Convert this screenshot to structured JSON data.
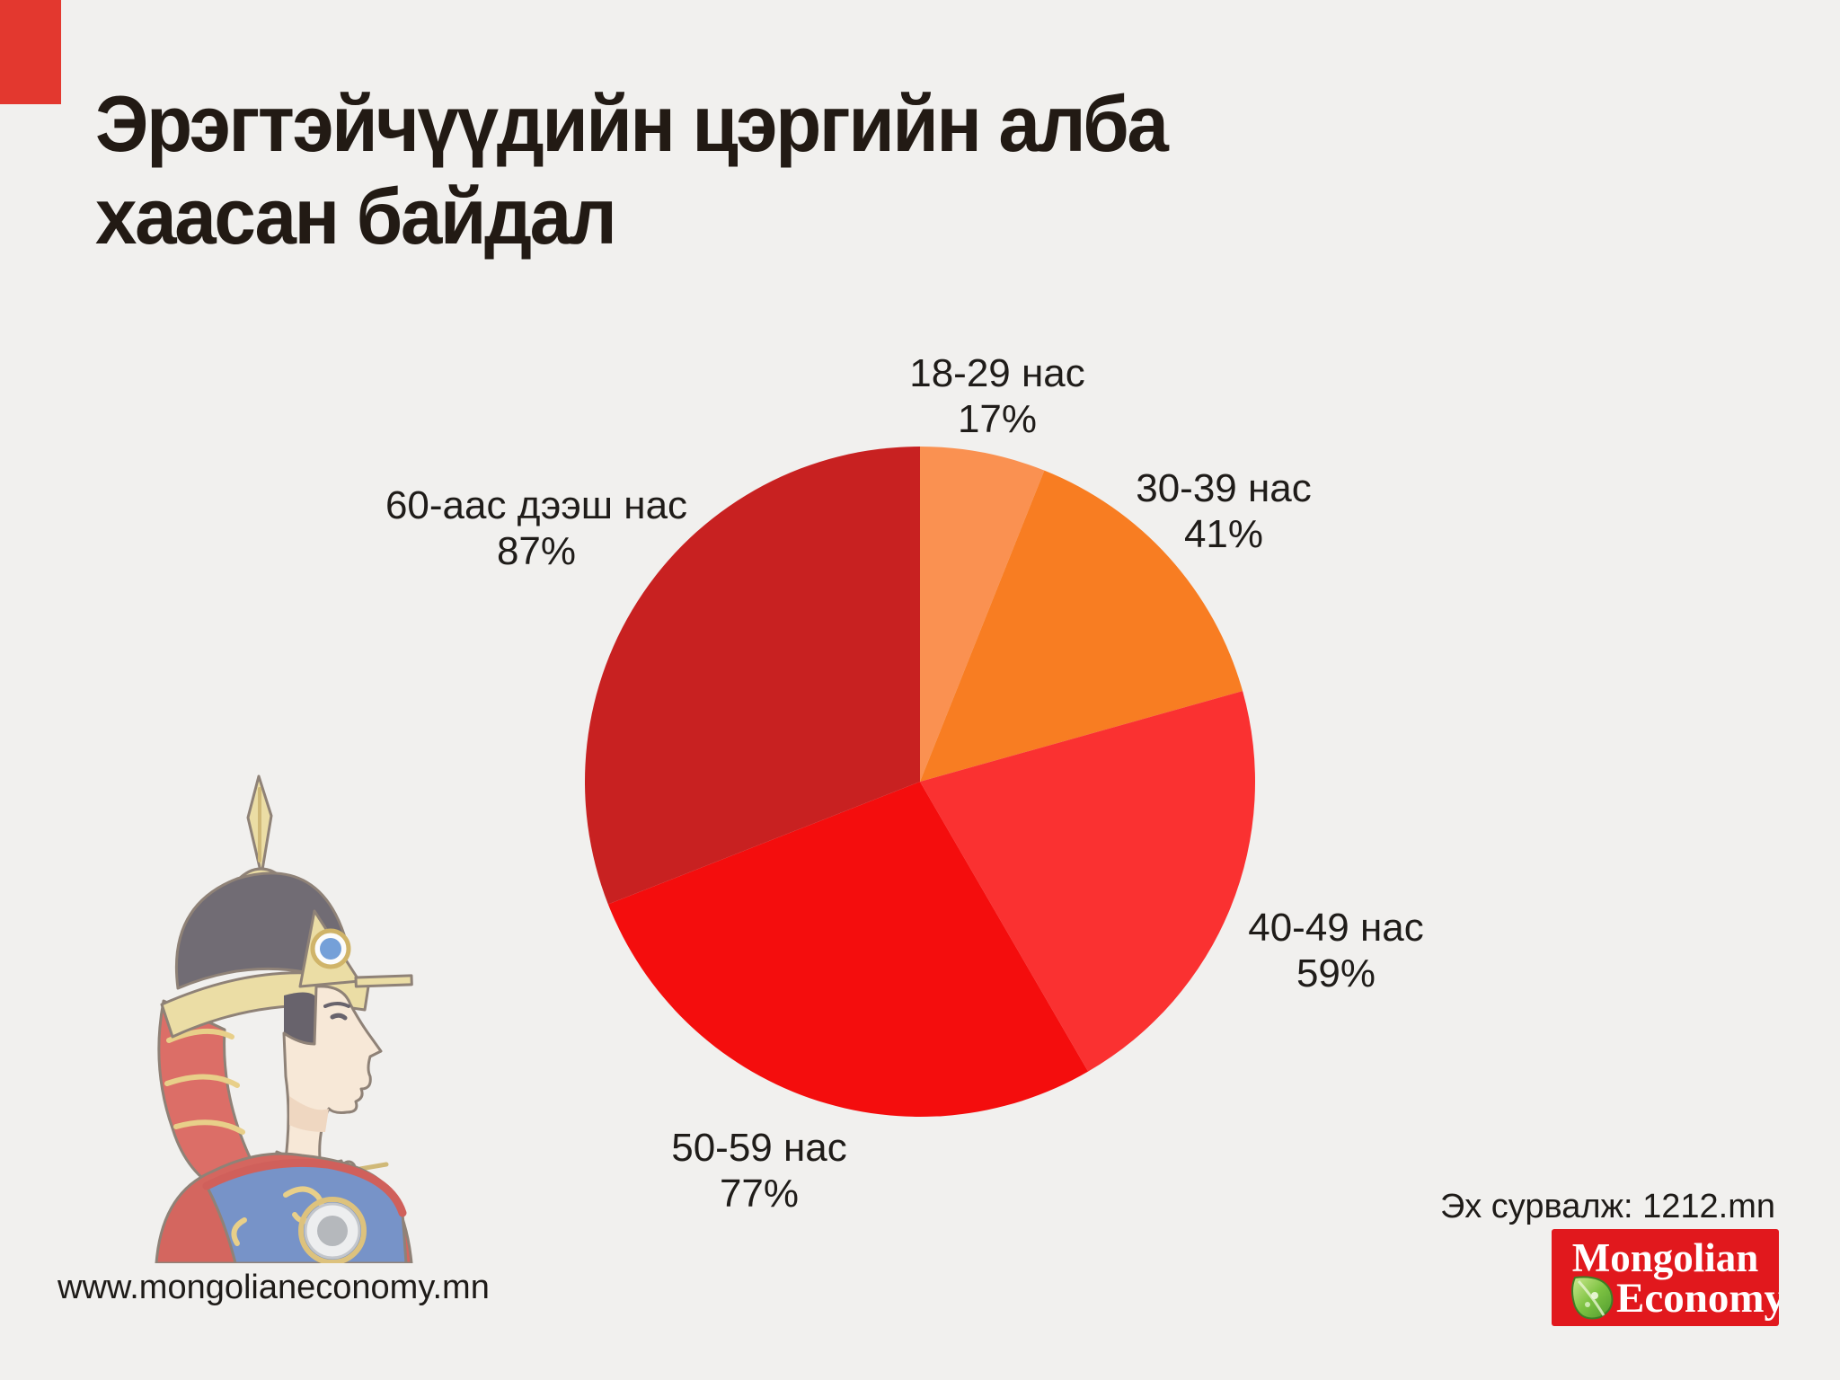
{
  "page": {
    "background_color": "#F1F0EE",
    "accent_color": "#E3382F",
    "text_color": "#221A14"
  },
  "title": {
    "line1": "Эрэгтэйчүүдийн цэргийн алба",
    "line2": "хаасан байдал"
  },
  "chart_data": {
    "type": "pie",
    "title": "Эрэгтэйчүүдийн цэргийн алба хаасан байдал",
    "categories": [
      "18-29 нас",
      "30-39 нас",
      "40-49 нас",
      "50-59 нас",
      "60-аас дээш нас"
    ],
    "values": [
      17,
      41,
      59,
      77,
      87
    ],
    "value_unit": "%",
    "colors": [
      "#FA9151",
      "#F87D22",
      "#FA3131",
      "#F40D0D",
      "#C82121"
    ],
    "start_angle_deg": 0,
    "direction": "clockwise",
    "labels_outside": true
  },
  "slices": [
    {
      "label": "18-29 нас",
      "value_text": "17%"
    },
    {
      "label": "30-39 нас",
      "value_text": "41%"
    },
    {
      "label": "40-49 нас",
      "value_text": "59%"
    },
    {
      "label": "50-59 нас",
      "value_text": "77%"
    },
    {
      "label": "60-аас дээш нас",
      "value_text": "87%"
    }
  ],
  "footer": {
    "website": "www.mongolianeconomy.mn",
    "source_label": "Эх сурвалж: 1212.mn"
  },
  "logo": {
    "line1": "Mongolian",
    "line2": "Economy",
    "background_color": "#E1181D",
    "text_color": "#FFFFFF",
    "icon": "leaf-icon"
  }
}
